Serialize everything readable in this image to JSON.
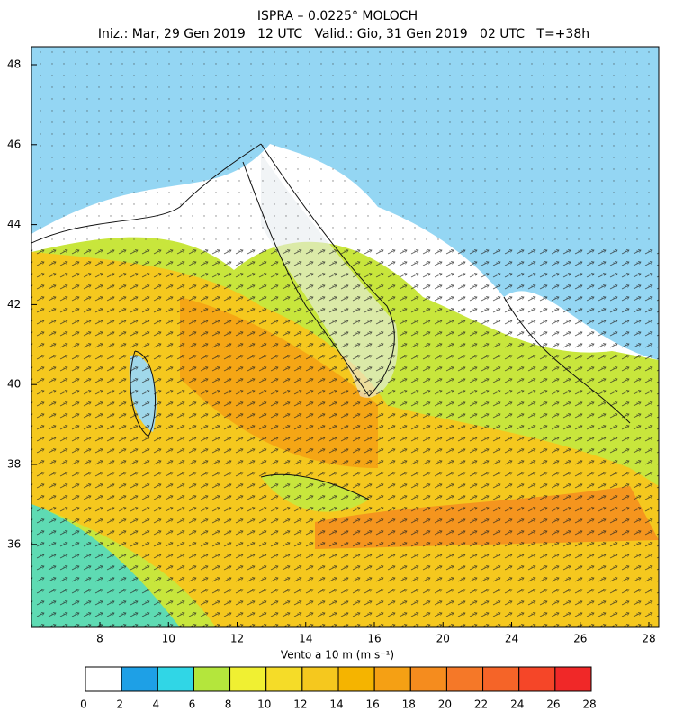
{
  "title": "ISPRA – 0.0225° MOLOCH",
  "subtitle": "Iniz.: Mar, 29 Gen 2019   12 UTC   Valid.: Gio, 31 Gen 2019   02 UTC   T=+38h",
  "map": {
    "xtick_labels": [
      "8",
      "10",
      "12",
      "14",
      "16",
      "20",
      "24",
      "26",
      "28"
    ],
    "ytick_labels": [
      "48",
      "46",
      "44",
      "42",
      "40",
      "38",
      "36"
    ]
  },
  "colorbar": {
    "label": "Vento a 10 m (m s⁻¹)",
    "bounds": [
      0,
      2,
      4,
      6,
      8,
      10,
      12,
      14,
      16,
      18,
      20,
      22,
      24,
      26,
      28
    ],
    "colors": [
      "#ffffff",
      "#1ea0e6",
      "#30d6e6",
      "#b4e63c",
      "#f0f032",
      "#f5dc28",
      "#f5c81e",
      "#f5b400",
      "#f5a014",
      "#f58c1e",
      "#f57828",
      "#f56428",
      "#f54628",
      "#f02828"
    ]
  }
}
